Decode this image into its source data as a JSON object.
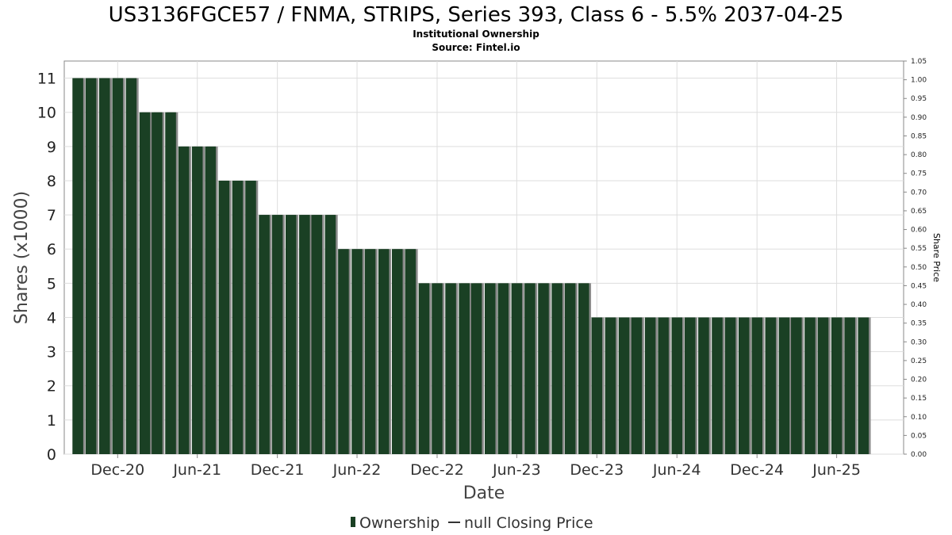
{
  "header": {
    "title": "US3136FGCE57 / FNMA, STRIPS, Series 393, Class 6 - 5.5% 2037-04-25",
    "subtitle": "Institutional Ownership",
    "source": "Source: Fintel.io"
  },
  "legend": {
    "ownership_label": "Ownership",
    "price_label": "null Closing Price"
  },
  "colors": {
    "bar": "#1a4024",
    "bar_shadow": "#8a8a8a",
    "grid": "#dddddd",
    "axis": "#888888"
  },
  "chart_data": {
    "type": "bar",
    "xlabel": "Date",
    "ylabel": "Shares (x1000)",
    "y2label": "Share Price",
    "ylim": [
      0,
      11.5
    ],
    "y2lim": [
      0,
      1.05
    ],
    "grid": true,
    "legend_position": "bottom",
    "yticks": [
      0,
      1,
      2,
      3,
      4,
      5,
      6,
      7,
      8,
      9,
      10,
      11
    ],
    "y2ticks": [
      "0.00",
      "0.05",
      "0.10",
      "0.15",
      "0.20",
      "0.25",
      "0.30",
      "0.35",
      "0.40",
      "0.45",
      "0.50",
      "0.55",
      "0.60",
      "0.65",
      "0.70",
      "0.75",
      "0.80",
      "0.85",
      "0.90",
      "0.95",
      "1.00",
      "1.05"
    ],
    "xticks": [
      "Dec-20",
      "Jun-21",
      "Dec-21",
      "Jun-22",
      "Dec-22",
      "Jun-23",
      "Dec-23",
      "Jun-24",
      "Dec-24",
      "Jun-25"
    ],
    "xrange": [
      "2020-08-01",
      "2025-11-01"
    ],
    "series": [
      {
        "name": "Ownership",
        "dates": [
          "2020-09-01",
          "2020-10-01",
          "2020-11-01",
          "2020-12-01",
          "2021-01-01",
          "2021-02-01",
          "2021-03-01",
          "2021-04-01",
          "2021-05-01",
          "2021-06-01",
          "2021-07-01",
          "2021-08-01",
          "2021-09-01",
          "2021-10-01",
          "2021-11-01",
          "2021-12-01",
          "2022-01-01",
          "2022-02-01",
          "2022-03-01",
          "2022-04-01",
          "2022-05-01",
          "2022-06-01",
          "2022-07-01",
          "2022-08-01",
          "2022-09-01",
          "2022-10-01",
          "2022-11-01",
          "2022-12-01",
          "2023-01-01",
          "2023-02-01",
          "2023-03-01",
          "2023-04-01",
          "2023-05-01",
          "2023-06-01",
          "2023-07-01",
          "2023-08-01",
          "2023-09-01",
          "2023-10-01",
          "2023-11-01",
          "2023-12-01",
          "2024-01-01",
          "2024-02-01",
          "2024-03-01",
          "2024-04-01",
          "2024-05-01",
          "2024-06-01",
          "2024-07-01",
          "2024-08-01",
          "2024-09-01",
          "2024-10-01",
          "2024-11-01",
          "2024-12-01",
          "2025-01-01",
          "2025-02-01",
          "2025-03-01",
          "2025-04-01",
          "2025-05-01",
          "2025-06-01",
          "2025-07-01",
          "2025-08-01"
        ],
        "values": [
          11,
          11,
          11,
          11,
          11,
          10,
          10,
          10,
          9,
          9,
          9,
          8,
          8,
          8,
          7,
          7,
          7,
          7,
          7,
          7,
          6,
          6,
          6,
          6,
          6,
          6,
          5,
          5,
          5,
          5,
          5,
          5,
          5,
          5,
          5,
          5,
          5,
          5,
          5,
          4,
          4,
          4,
          4,
          4,
          4,
          4,
          4,
          4,
          4,
          4,
          4,
          4,
          4,
          4,
          4,
          4,
          4,
          4,
          4,
          4
        ]
      }
    ]
  }
}
